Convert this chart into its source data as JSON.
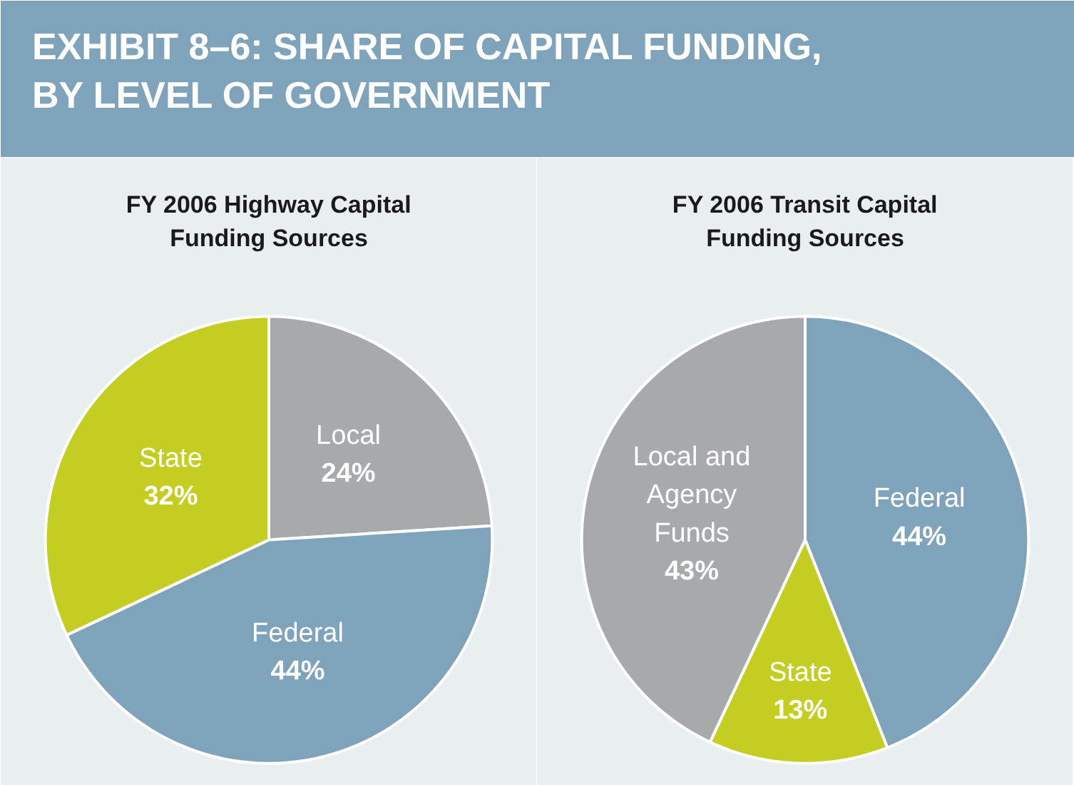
{
  "chart_data": [
    {
      "type": "other",
      "title": "EXHIBIT 8–6: SHARE OF CAPITAL FUNDING, BY LEVEL OF GOVERNMENT"
    },
    {
      "type": "pie",
      "title": "FY 2006 Highway Capital Funding Sources",
      "categories": [
        "Local",
        "Federal",
        "State"
      ],
      "values": [
        24,
        44,
        32
      ],
      "colors": [
        "#a7a9ac",
        "#7fa3ba",
        "#c4cd21"
      ],
      "value_labels": [
        "24%",
        "44%",
        "32%"
      ]
    },
    {
      "type": "pie",
      "title": "FY 2006 Transit Capital Funding Sources",
      "categories": [
        "Federal",
        "State",
        "Local and Agency Funds"
      ],
      "values": [
        44,
        13,
        43
      ],
      "colors": [
        "#7fa3ba",
        "#c4cd21",
        "#a7a9ac"
      ],
      "value_labels": [
        "44%",
        "13%",
        "43%"
      ]
    }
  ]
}
